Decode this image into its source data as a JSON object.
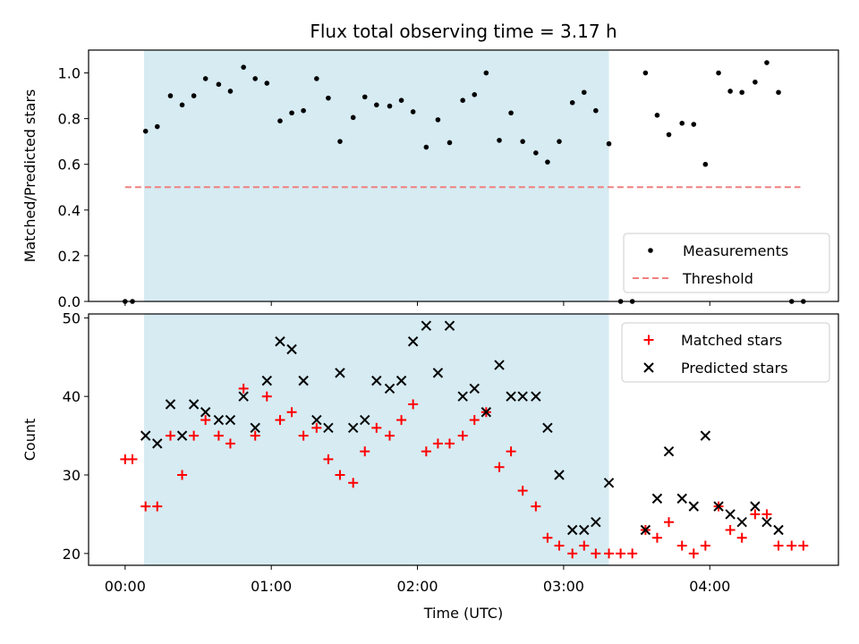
{
  "chart_data": {
    "type": "scatter",
    "title": "Flux total observing time = 3.17 h",
    "xlabel": "Time (UTC)",
    "xlim_hours": [
      -0.25,
      4.88
    ],
    "xticks": [
      {
        "v": 0,
        "label": "00:00"
      },
      {
        "v": 1,
        "label": "01:00"
      },
      {
        "v": 2,
        "label": "02:00"
      },
      {
        "v": 3,
        "label": "03:00"
      },
      {
        "v": 4,
        "label": "04:00"
      }
    ],
    "shaded_interval_hours": [
      0.13,
      3.31
    ],
    "shade_color": "#add8e6",
    "panels": [
      {
        "ylabel": "Matched/Predicted stars",
        "ylim": [
          0,
          1.1
        ],
        "yticks": [
          "0.0",
          "0.2",
          "0.4",
          "0.6",
          "0.8",
          "1.0"
        ],
        "ytick_values": [
          0,
          0.2,
          0.4,
          0.6,
          0.8,
          1.0
        ],
        "threshold": {
          "name": "Threshold",
          "value": 0.5,
          "x_range": [
            0,
            4.62
          ],
          "color": "#f08080"
        },
        "series": [
          {
            "name": "Measurements",
            "marker": "dot",
            "color": "#000000",
            "x": [
              0.0,
              0.05,
              0.14,
              0.22,
              0.31,
              0.39,
              0.47,
              0.55,
              0.64,
              0.72,
              0.81,
              0.89,
              0.97,
              1.06,
              1.14,
              1.22,
              1.31,
              1.39,
              1.47,
              1.56,
              1.64,
              1.72,
              1.81,
              1.89,
              1.97,
              2.06,
              2.14,
              2.22,
              2.31,
              2.39,
              2.47,
              2.56,
              2.64,
              2.72,
              2.81,
              2.89,
              2.97,
              3.06,
              3.14,
              3.22,
              3.31,
              3.39,
              3.47,
              3.56,
              3.64,
              3.72,
              3.81,
              3.89,
              3.97,
              4.06,
              4.14,
              4.22,
              4.31,
              4.39,
              4.47,
              4.56,
              4.64
            ],
            "y": [
              0.0,
              0.0,
              0.745,
              0.765,
              0.9,
              0.86,
              0.9,
              0.975,
              0.95,
              0.92,
              1.025,
              0.975,
              0.955,
              0.79,
              0.825,
              0.835,
              0.975,
              0.89,
              0.7,
              0.805,
              0.895,
              0.86,
              0.855,
              0.88,
              0.83,
              0.675,
              0.795,
              0.695,
              0.88,
              0.905,
              1.0,
              0.705,
              0.825,
              0.7,
              0.65,
              0.61,
              0.7,
              0.87,
              0.915,
              0.835,
              0.69,
              0.0,
              0.0,
              1.0,
              0.815,
              0.73,
              0.78,
              0.775,
              0.6,
              1.0,
              0.92,
              0.915,
              0.96,
              1.045,
              0.915,
              0.0,
              0.0
            ]
          }
        ],
        "legend": {
          "placement": "lower-right",
          "entries": [
            "Measurements",
            "Threshold"
          ]
        }
      },
      {
        "ylabel": "Count",
        "ylim": [
          18.5,
          50.5
        ],
        "yticks": [
          "20",
          "30",
          "40",
          "50"
        ],
        "ytick_values": [
          20,
          30,
          40,
          50
        ],
        "series": [
          {
            "name": "Matched stars",
            "marker": "plus",
            "color": "#ff0000",
            "x": [
              0.0,
              0.05,
              0.14,
              0.22,
              0.31,
              0.39,
              0.47,
              0.55,
              0.64,
              0.72,
              0.81,
              0.89,
              0.97,
              1.06,
              1.14,
              1.22,
              1.31,
              1.39,
              1.47,
              1.56,
              1.64,
              1.72,
              1.81,
              1.89,
              1.97,
              2.06,
              2.14,
              2.22,
              2.31,
              2.39,
              2.47,
              2.56,
              2.64,
              2.72,
              2.81,
              2.89,
              2.97,
              3.06,
              3.14,
              3.22,
              3.31,
              3.39,
              3.47,
              3.56,
              3.64,
              3.72,
              3.81,
              3.89,
              3.97,
              4.06,
              4.14,
              4.22,
              4.31,
              4.39,
              4.47,
              4.56,
              4.64
            ],
            "y": [
              32,
              32,
              26,
              26,
              35,
              30,
              35,
              37,
              35,
              34,
              41,
              35,
              40,
              37,
              38,
              35,
              36,
              32,
              30,
              29,
              33,
              36,
              35,
              37,
              39,
              33,
              34,
              34,
              35,
              37,
              38,
              31,
              33,
              28,
              26,
              22,
              21,
              20,
              21,
              20,
              20,
              20,
              20,
              23,
              22,
              24,
              21,
              20,
              21,
              26,
              23,
              22,
              25,
              25,
              21,
              21,
              21
            ]
          },
          {
            "name": "Predicted stars",
            "marker": "x",
            "color": "#000000",
            "x": [
              0.14,
              0.22,
              0.31,
              0.39,
              0.47,
              0.55,
              0.64,
              0.72,
              0.81,
              0.89,
              0.97,
              1.06,
              1.14,
              1.22,
              1.31,
              1.39,
              1.47,
              1.56,
              1.64,
              1.72,
              1.81,
              1.89,
              1.97,
              2.06,
              2.14,
              2.22,
              2.31,
              2.39,
              2.47,
              2.56,
              2.64,
              2.72,
              2.81,
              2.89,
              2.97,
              3.06,
              3.14,
              3.22,
              3.31,
              3.56,
              3.64,
              3.72,
              3.81,
              3.89,
              3.97,
              4.06,
              4.14,
              4.22,
              4.31,
              4.39,
              4.47
            ],
            "y": [
              35,
              34,
              39,
              35,
              39,
              38,
              37,
              37,
              40,
              36,
              42,
              47,
              46,
              42,
              37,
              36,
              43,
              36,
              37,
              42,
              41,
              42,
              47,
              49,
              43,
              49,
              40,
              41,
              38,
              44,
              40,
              40,
              40,
              36,
              30,
              23,
              23,
              24,
              29,
              23,
              27,
              33,
              27,
              26,
              35,
              26,
              25,
              24,
              26,
              24,
              23
            ]
          }
        ],
        "legend": {
          "placement": "upper-right",
          "entries": [
            "Matched stars",
            "Predicted stars"
          ]
        }
      }
    ]
  }
}
